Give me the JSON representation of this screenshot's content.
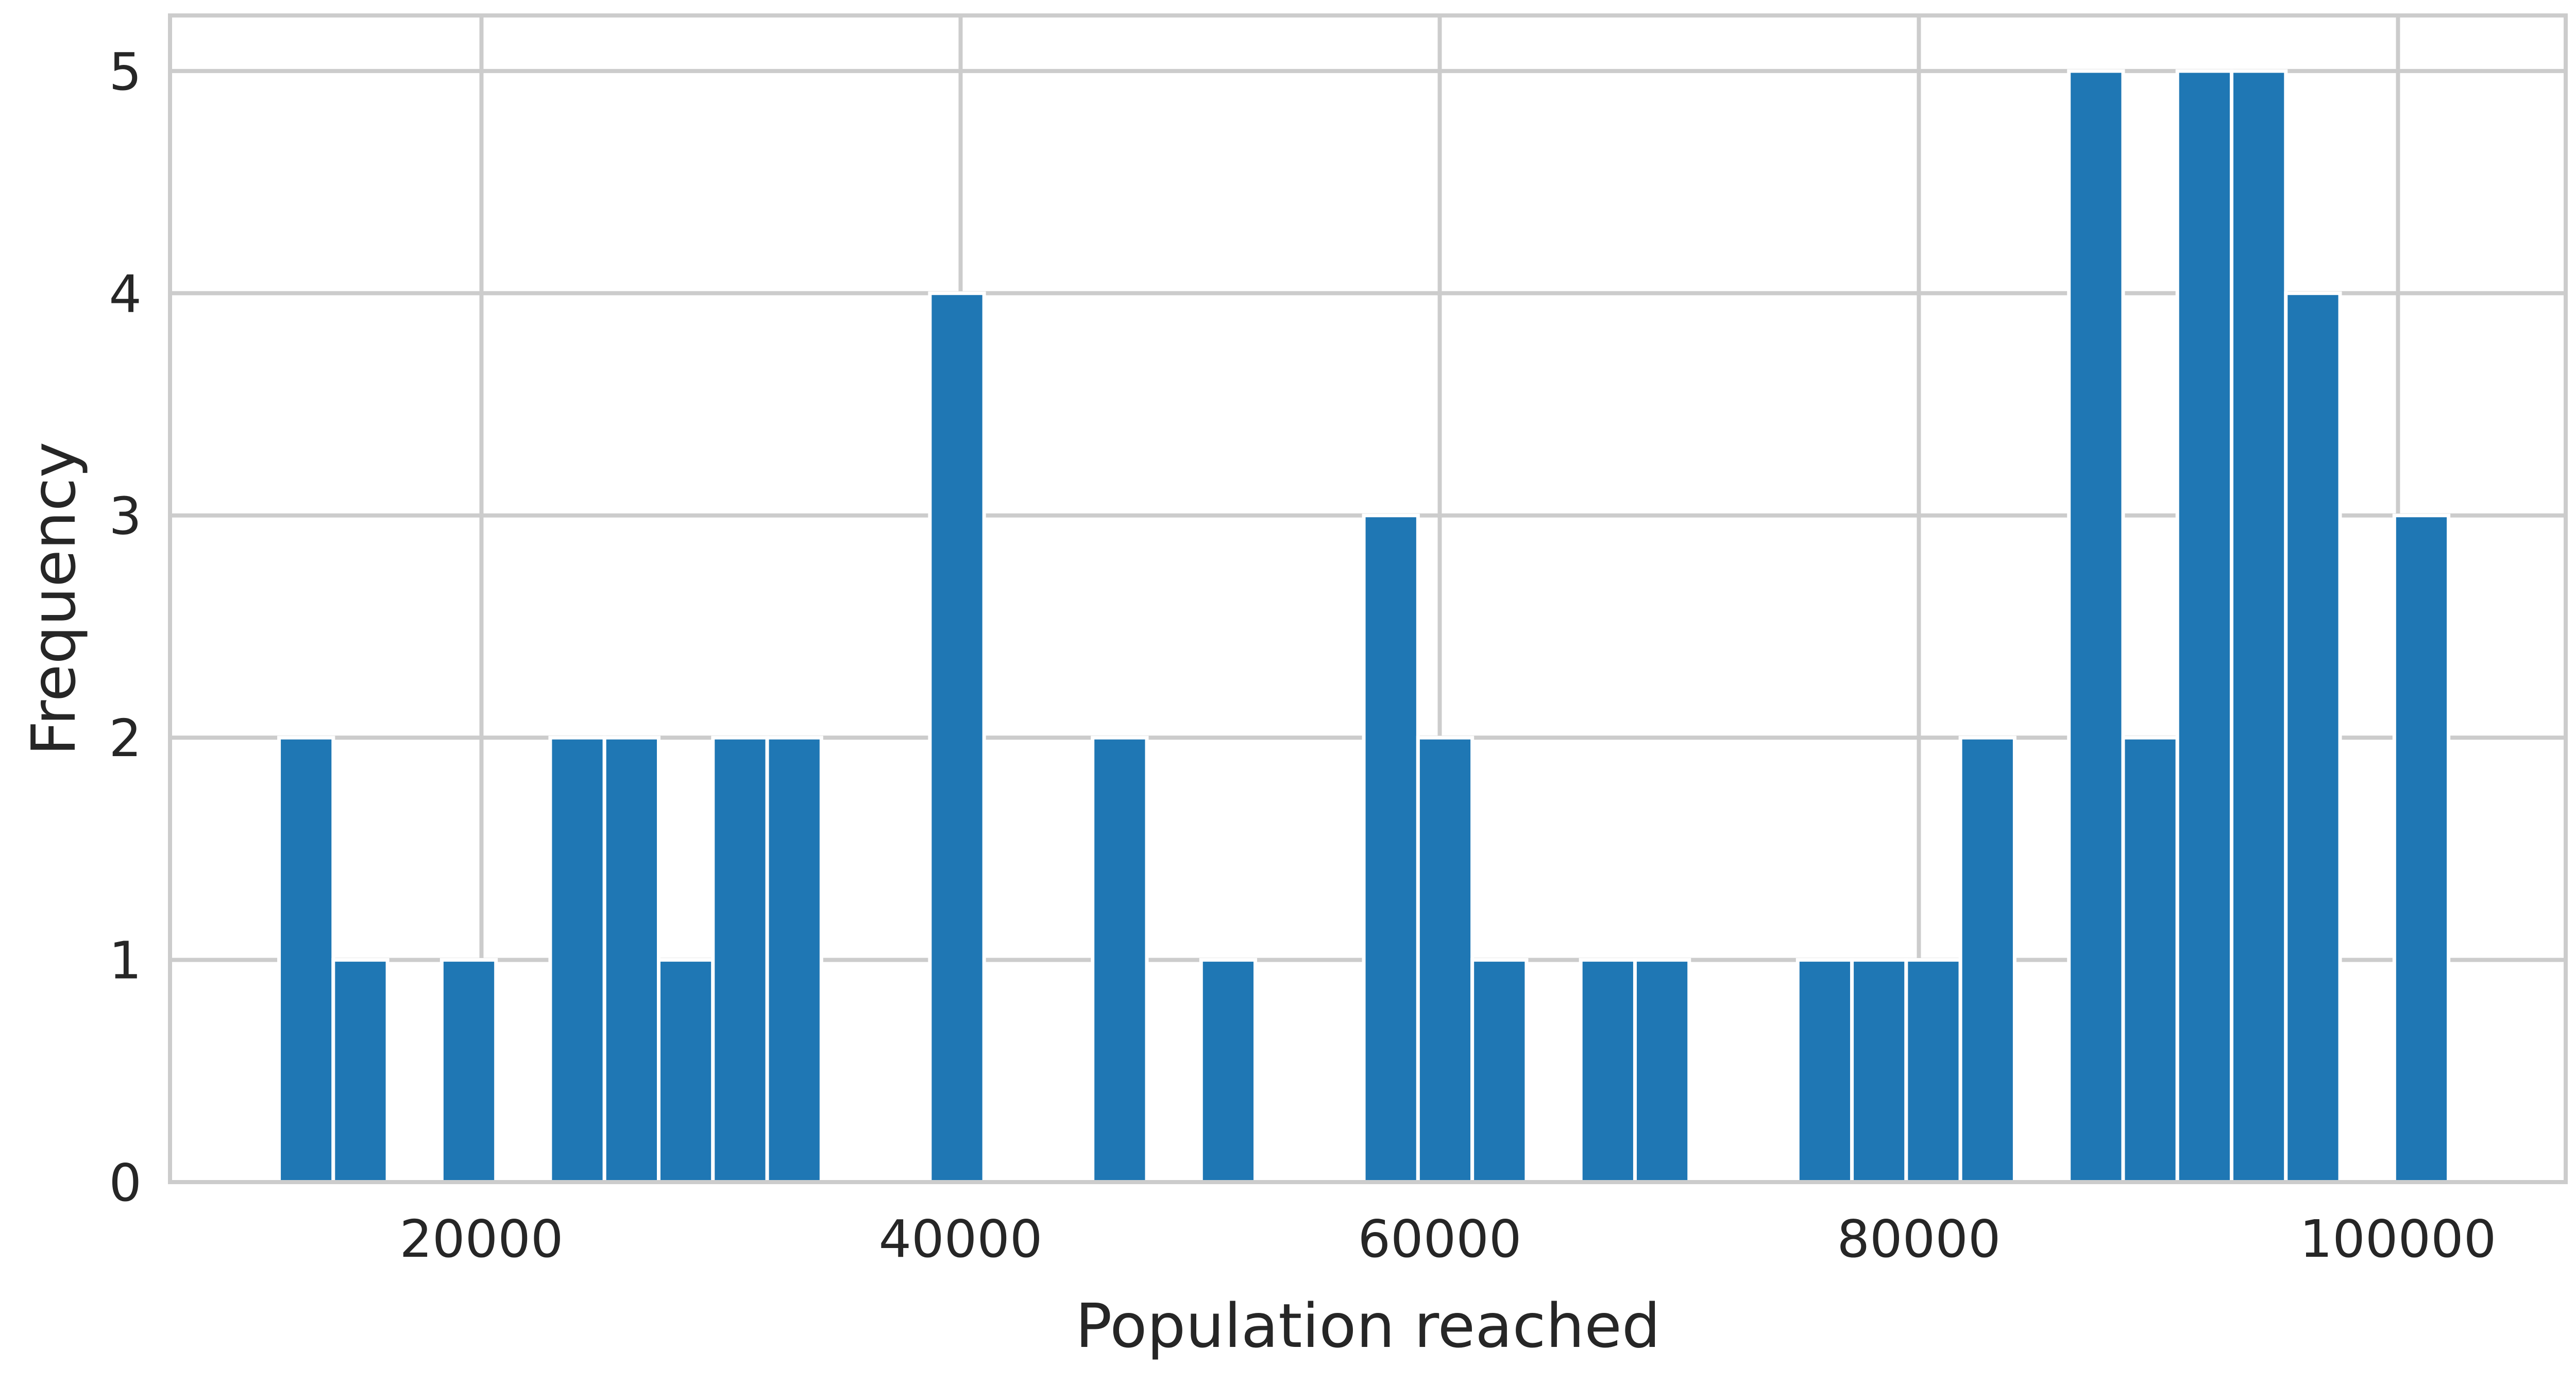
{
  "chart_data": {
    "type": "bar",
    "subtype": "histogram",
    "title": "",
    "xlabel": "Population reached",
    "ylabel": "Frequency",
    "xlim": [
      7000,
      107000
    ],
    "ylim": [
      0,
      5.25
    ],
    "xticks": [
      20000,
      40000,
      60000,
      80000,
      100000
    ],
    "xtick_labels": [
      "20000",
      "40000",
      "60000",
      "80000",
      "100000"
    ],
    "yticks": [
      0,
      1,
      2,
      3,
      4,
      5
    ],
    "ytick_labels": [
      "0",
      "1",
      "2",
      "3",
      "4",
      "5"
    ],
    "grid": true,
    "bar_color": "#1f77b4",
    "grid_color": "#cccccc",
    "bin_width": 2264,
    "bins": [
      {
        "start": 11550,
        "end": 13814,
        "count": 2
      },
      {
        "start": 13814,
        "end": 16078,
        "count": 1
      },
      {
        "start": 16078,
        "end": 18342,
        "count": 0
      },
      {
        "start": 18342,
        "end": 20606,
        "count": 1
      },
      {
        "start": 20606,
        "end": 22870,
        "count": 0
      },
      {
        "start": 22870,
        "end": 25134,
        "count": 2
      },
      {
        "start": 25134,
        "end": 27398,
        "count": 2
      },
      {
        "start": 27398,
        "end": 29662,
        "count": 1
      },
      {
        "start": 29662,
        "end": 31926,
        "count": 2
      },
      {
        "start": 31926,
        "end": 34190,
        "count": 2
      },
      {
        "start": 34190,
        "end": 36454,
        "count": 0
      },
      {
        "start": 36454,
        "end": 38718,
        "count": 0
      },
      {
        "start": 38718,
        "end": 40982,
        "count": 4
      },
      {
        "start": 40982,
        "end": 43246,
        "count": 0
      },
      {
        "start": 43246,
        "end": 45510,
        "count": 0
      },
      {
        "start": 45510,
        "end": 47774,
        "count": 2
      },
      {
        "start": 47774,
        "end": 50038,
        "count": 0
      },
      {
        "start": 50038,
        "end": 52302,
        "count": 1
      },
      {
        "start": 52302,
        "end": 54566,
        "count": 0
      },
      {
        "start": 54566,
        "end": 56830,
        "count": 0
      },
      {
        "start": 56830,
        "end": 59094,
        "count": 3
      },
      {
        "start": 59094,
        "end": 61358,
        "count": 2
      },
      {
        "start": 61358,
        "end": 63622,
        "count": 1
      },
      {
        "start": 63622,
        "end": 65886,
        "count": 0
      },
      {
        "start": 65886,
        "end": 68150,
        "count": 1
      },
      {
        "start": 68150,
        "end": 70414,
        "count": 1
      },
      {
        "start": 70414,
        "end": 72678,
        "count": 0
      },
      {
        "start": 72678,
        "end": 74942,
        "count": 0
      },
      {
        "start": 74942,
        "end": 77206,
        "count": 1
      },
      {
        "start": 77206,
        "end": 79470,
        "count": 1
      },
      {
        "start": 79470,
        "end": 81734,
        "count": 1
      },
      {
        "start": 81734,
        "end": 83998,
        "count": 2
      },
      {
        "start": 83998,
        "end": 86262,
        "count": 0
      },
      {
        "start": 86262,
        "end": 88526,
        "count": 5
      },
      {
        "start": 88526,
        "end": 90790,
        "count": 2
      },
      {
        "start": 90790,
        "end": 93054,
        "count": 5
      },
      {
        "start": 93054,
        "end": 95318,
        "count": 5
      },
      {
        "start": 95318,
        "end": 97582,
        "count": 4
      },
      {
        "start": 97582,
        "end": 99846,
        "count": 0
      },
      {
        "start": 99846,
        "end": 102110,
        "count": 3
      }
    ]
  }
}
